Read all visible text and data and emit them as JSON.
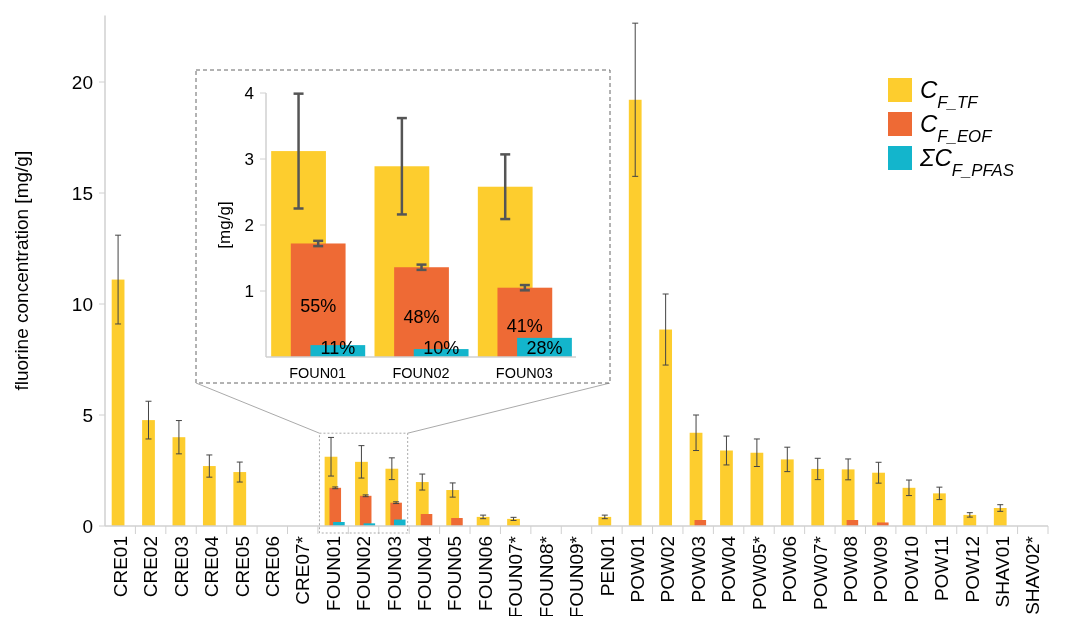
{
  "chart_data": [
    {
      "type": "bar",
      "ylabel": "fluorine concentration [mg/g]",
      "categories": [
        "CRE01",
        "CRE02",
        "CRE03",
        "CRE04",
        "CRE05",
        "CRE06",
        "CRE07*",
        "FOUN01",
        "FOUN02",
        "FOUN03",
        "FOUN04",
        "FOUN05",
        "FOUN06",
        "FOUN07*",
        "FOUN08*",
        "FOUN09*",
        "PEN01",
        "POW01",
        "POW02",
        "POW03",
        "POW04",
        "POW05*",
        "POW06",
        "POW07*",
        "POW08",
        "POW09",
        "POW10",
        "POW11",
        "POW12",
        "SHAV01",
        "SHAV02*"
      ],
      "series": [
        {
          "name": "C$_{F_TF}$",
          "color": "#fdcd2e",
          "values": [
            11.1,
            4.77,
            4.0,
            2.7,
            2.43,
            null,
            null,
            3.12,
            2.89,
            2.58,
            1.98,
            1.62,
            0.41,
            0.32,
            null,
            null,
            0.41,
            19.2,
            8.85,
            4.2,
            3.4,
            3.3,
            3.0,
            2.57,
            2.55,
            2.4,
            1.72,
            1.47,
            0.5,
            0.81,
            null
          ],
          "errors": [
            2.0,
            0.85,
            0.75,
            0.5,
            0.45,
            null,
            null,
            0.87,
            0.73,
            0.49,
            0.36,
            0.32,
            0.08,
            0.07,
            null,
            null,
            0.08,
            3.45,
            1.6,
            0.8,
            0.65,
            0.62,
            0.55,
            0.48,
            0.47,
            0.47,
            0.35,
            0.28,
            0.1,
            0.15,
            null
          ]
        },
        {
          "name": "C$_{F_EOF}$",
          "color": "#ee6a35",
          "values": [
            null,
            null,
            null,
            null,
            null,
            null,
            null,
            1.72,
            1.36,
            1.05,
            0.54,
            0.36,
            null,
            null,
            null,
            null,
            null,
            null,
            null,
            0.27,
            null,
            null,
            null,
            null,
            0.27,
            0.16,
            null,
            null,
            null,
            null,
            null
          ],
          "errors": [
            null,
            null,
            null,
            null,
            null,
            null,
            null,
            0.04,
            0.04,
            0.04,
            null,
            null,
            null,
            null,
            null,
            null,
            null,
            null,
            null,
            null,
            null,
            null,
            null,
            null,
            null,
            null,
            null,
            null,
            null,
            null,
            null
          ]
        },
        {
          "name": "ΣC$_{F_PFAS}$",
          "color": "#13b5cc",
          "values": [
            null,
            null,
            null,
            null,
            null,
            null,
            null,
            0.18,
            0.12,
            0.29,
            null,
            null,
            null,
            null,
            null,
            null,
            null,
            null,
            null,
            null,
            null,
            null,
            null,
            null,
            null,
            null,
            null,
            null,
            null,
            null,
            null
          ]
        }
      ],
      "ylim": [
        0,
        23
      ],
      "yticks": [
        0,
        5,
        10,
        15,
        20
      ],
      "grid": false,
      "legend": "top right"
    },
    {
      "type": "bar",
      "ylabel": "[mg/g]",
      "categories": [
        "FOUN01",
        "FOUN02",
        "FOUN03"
      ],
      "series": [
        {
          "color": "#fdcd2e",
          "values": [
            3.12,
            2.89,
            2.58
          ],
          "errors": [
            0.87,
            0.73,
            0.49
          ]
        },
        {
          "color": "#ee6a35",
          "values": [
            1.72,
            1.36,
            1.05
          ],
          "errors": [
            0.04,
            0.04,
            0.04
          ]
        },
        {
          "color": "#13b5cc",
          "values": [
            0.18,
            0.12,
            0.29
          ]
        }
      ],
      "annotations": [
        "55%",
        "48%",
        "41%",
        "11%",
        "10%",
        "28%"
      ],
      "ylim": [
        0,
        4
      ],
      "yticks": [
        1,
        2,
        3,
        4
      ],
      "grid": false,
      "legend": false
    }
  ]
}
